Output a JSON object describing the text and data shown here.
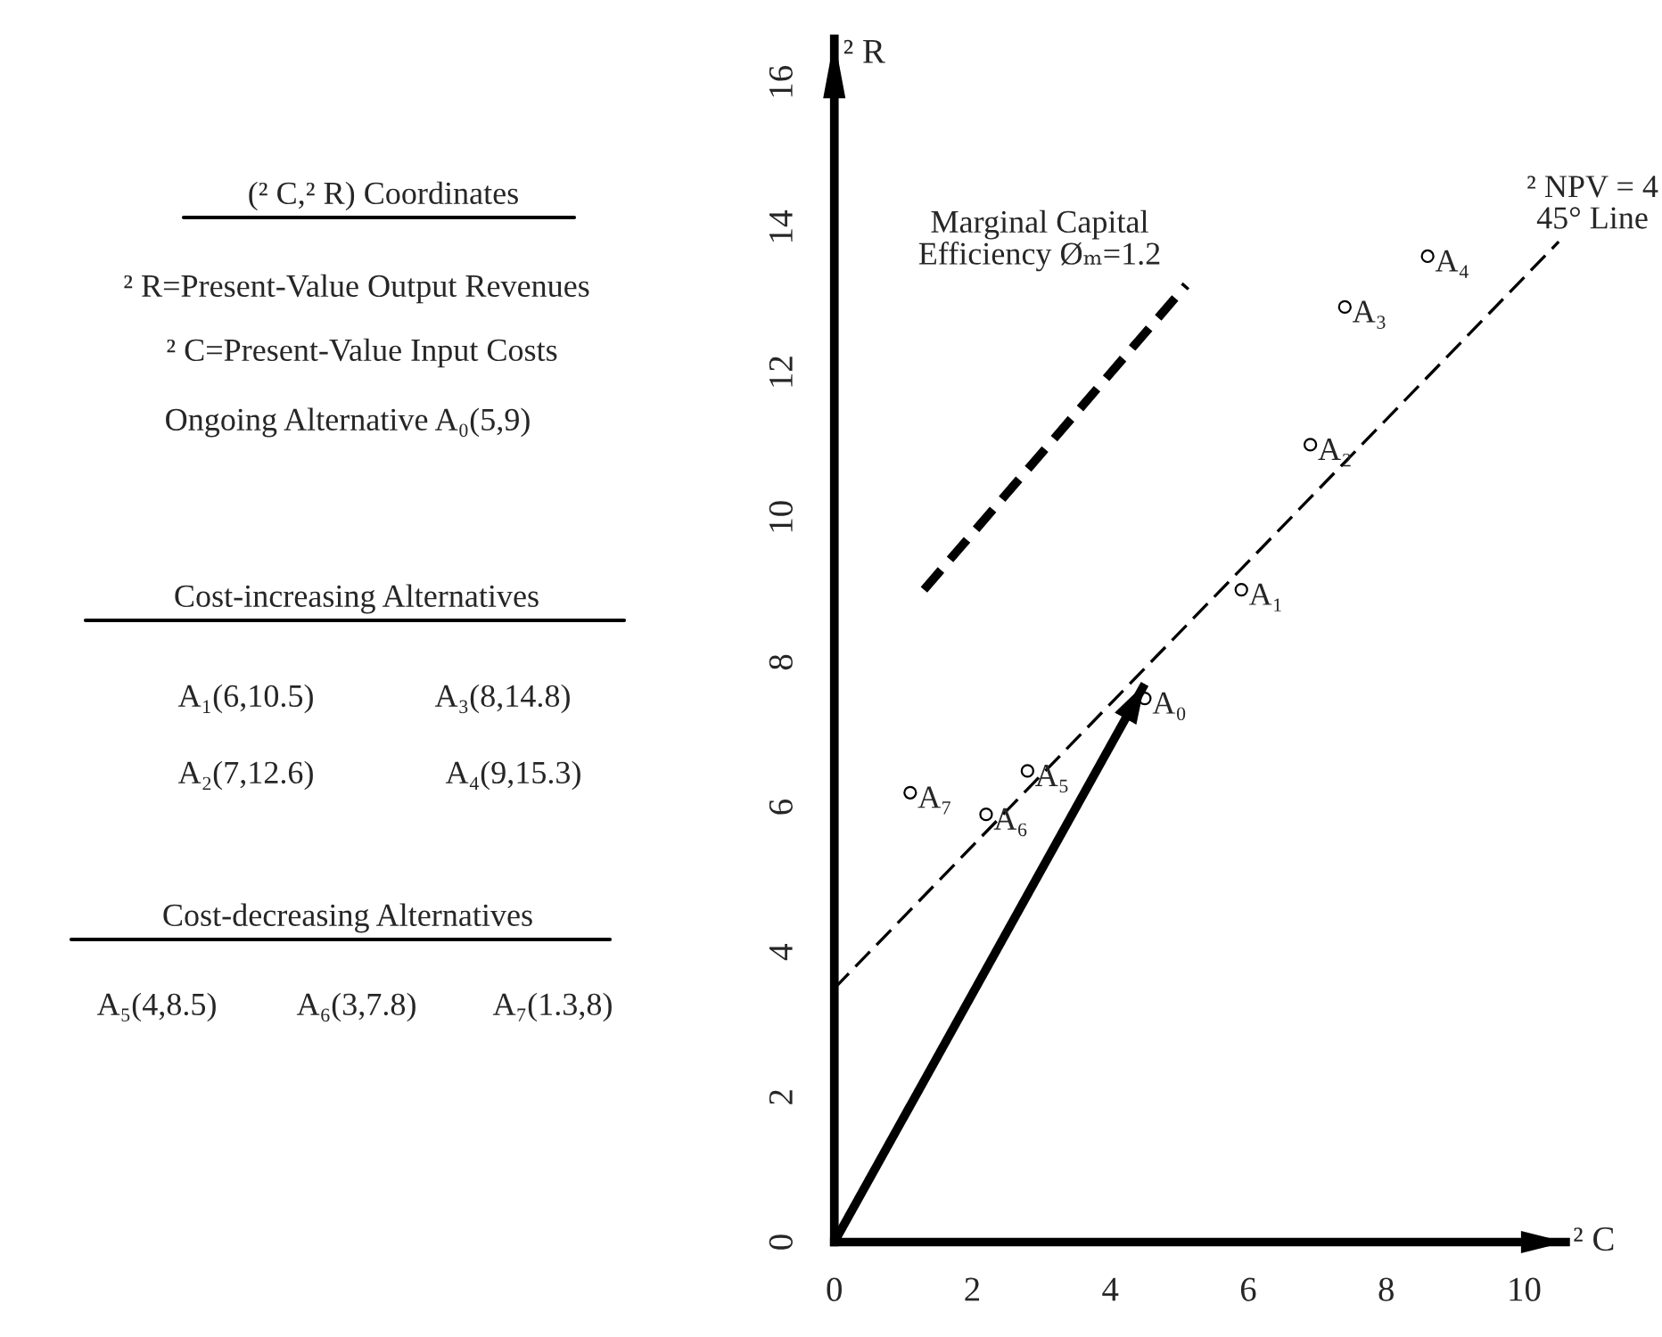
{
  "chart_data": {
    "type": "scatter",
    "xlabel": "² C",
    "ylabel": "² R",
    "xlim": [
      0,
      10.6
    ],
    "ylim": [
      0,
      16.6
    ],
    "xticks": [
      0,
      2,
      4,
      6,
      8,
      10
    ],
    "yticks": [
      0,
      2,
      4,
      6,
      8,
      10,
      12,
      14,
      16
    ],
    "series": [
      {
        "type": "scatter",
        "color": "#000000",
        "marker": "circle",
        "x": [
          4.5,
          5.9,
          6.9,
          7.4,
          8.6,
          2.8,
          2.2,
          1.1
        ],
        "values": [
          7.5,
          9.0,
          11.0,
          12.9,
          13.6,
          6.5,
          5.9,
          6.2
        ]
      },
      {
        "type": "line",
        "color": "#000000",
        "line_style": "dashed",
        "x": [
          0,
          10.5
        ],
        "values": [
          3.5,
          13.8
        ]
      },
      {
        "type": "line",
        "color": "#000000",
        "line_style": "dashed",
        "x": [
          1.3,
          5.1
        ],
        "values": [
          9.0,
          13.2
        ]
      },
      {
        "type": "line",
        "color": "#000000",
        "line_style": "solid",
        "x": [
          0,
          4.5
        ],
        "values": [
          0,
          7.7
        ]
      }
    ],
    "annotations": [
      "(² C,² R) Coordinates",
      "² R=Present-Value Output Revenues",
      "² C=Present-Value Input Costs",
      "Ongoing Alternative A₀(5,9)",
      "Cost-increasing Alternatives",
      "A₁(6,10.5)",
      "A₃(8,14.8)",
      "A₂(7,12.6)",
      "A₄(9,15.3)",
      "Cost-decreasing Alternatives",
      "A₅(4,8.5)",
      "A₆(3,7.8)",
      "A₇(1.3,8)",
      "Marginal Capital\nEfficiency Øₘ=1.2",
      "² NPV = 4\n45° Line",
      {
        "text": "A₀",
        "x": 4.5,
        "y": 7.5
      },
      {
        "text": "A₁",
        "x": 5.9,
        "y": 9.0
      },
      {
        "text": "A₂",
        "x": 6.9,
        "y": 11.0
      },
      {
        "text": "A₃",
        "x": 7.4,
        "y": 12.9
      },
      {
        "text": "A₄",
        "x": 8.6,
        "y": 13.6
      },
      {
        "text": "A₅",
        "x": 2.8,
        "y": 6.5
      },
      {
        "text": "A₆",
        "x": 2.2,
        "y": 5.9
      },
      {
        "text": "A₇",
        "x": 1.1,
        "y": 6.2
      }
    ]
  }
}
